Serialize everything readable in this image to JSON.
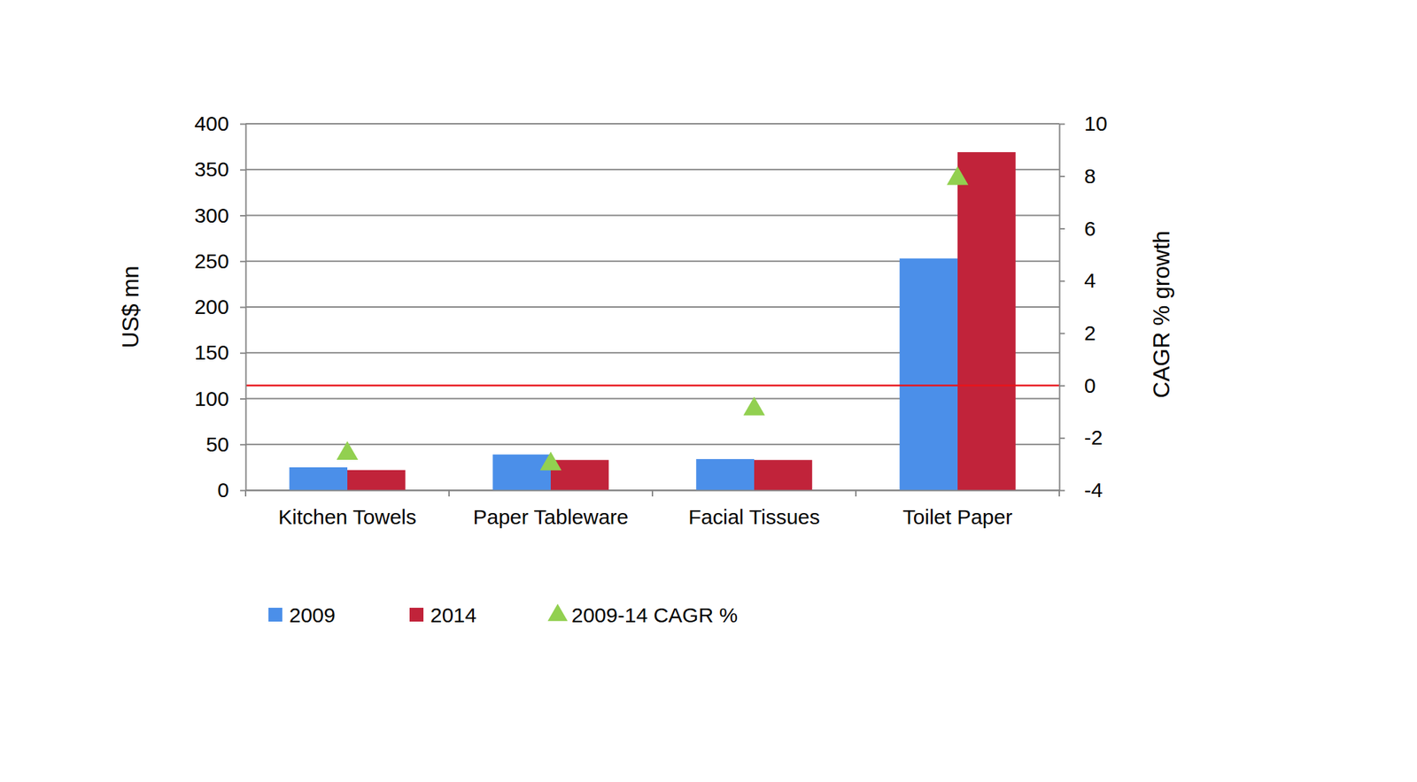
{
  "chart_data": {
    "type": "bar",
    "categories": [
      "Kitchen Towels",
      "Paper Tableware",
      "Facial Tissues",
      "Toilet Paper"
    ],
    "series": [
      {
        "name": "2009",
        "color": "#4B8FE9",
        "type": "bar",
        "values": [
          25,
          39,
          34,
          253
        ]
      },
      {
        "name": "2014",
        "color": "#C1233A",
        "type": "bar",
        "values": [
          22,
          33,
          33,
          369
        ]
      },
      {
        "name": "2009-14 CAGR %",
        "color": "#92D050",
        "type": "scatter",
        "marker": "triangle",
        "axis": "y2",
        "values": [
          -2.6,
          -3.0,
          -0.9,
          7.9
        ]
      }
    ],
    "y_label": "US$ mn",
    "y2_label": "CAGR % growth",
    "ylim": [
      0,
      400
    ],
    "yticks": [
      0,
      50,
      100,
      150,
      200,
      250,
      300,
      350,
      400
    ],
    "y2lim": [
      -4,
      10
    ],
    "y2ticks": [
      -4,
      -2,
      0,
      2,
      4,
      6,
      8,
      10
    ],
    "grid": true,
    "legend": "bottom"
  }
}
